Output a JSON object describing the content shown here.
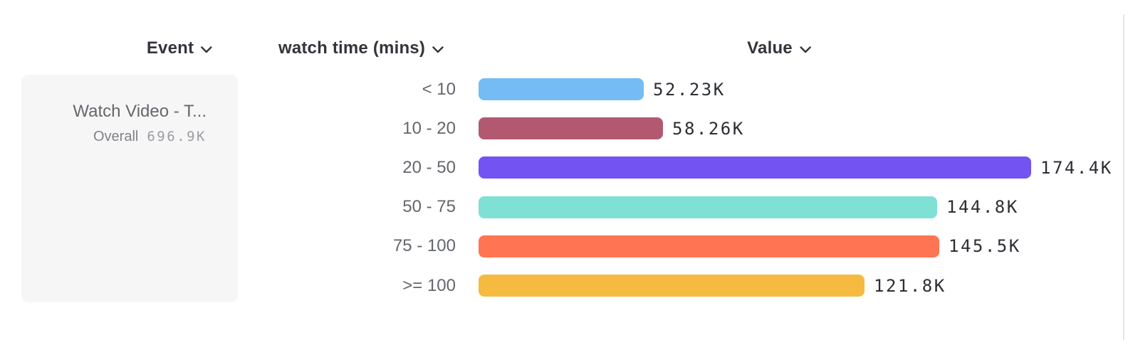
{
  "headers": {
    "event": "Event",
    "breakdown": "watch time (mins)",
    "value": "Value"
  },
  "event_card": {
    "name": "Watch Video - T...",
    "overall_label": "Overall",
    "overall_value": "696.9K"
  },
  "chart_data": {
    "type": "bar",
    "orientation": "horizontal",
    "title": "",
    "xlabel": "Value",
    "ylabel": "watch time (mins)",
    "categories": [
      "< 10",
      "10 - 20",
      "20 - 50",
      "50 - 75",
      "75 - 100",
      ">= 100"
    ],
    "values": [
      52230,
      58260,
      174400,
      144800,
      145500,
      121800
    ],
    "value_labels": [
      "52.23K",
      "58.26K",
      "174.4K",
      "144.8K",
      "145.5K",
      "121.8K"
    ],
    "bar_colors": [
      "#74BCF3",
      "#B25971",
      "#7353F2",
      "#7FE0D4",
      "#FF7452",
      "#F7BA41"
    ],
    "xlim": [
      0,
      174400
    ],
    "grid": false,
    "legend": false,
    "total": 696900
  },
  "colors": {
    "background": "#ffffff",
    "card_background": "#f6f6f7",
    "header_text": "#33353b",
    "label_text": "#63666c",
    "value_text": "#2c2e33",
    "divider": "#e6e6e8"
  }
}
